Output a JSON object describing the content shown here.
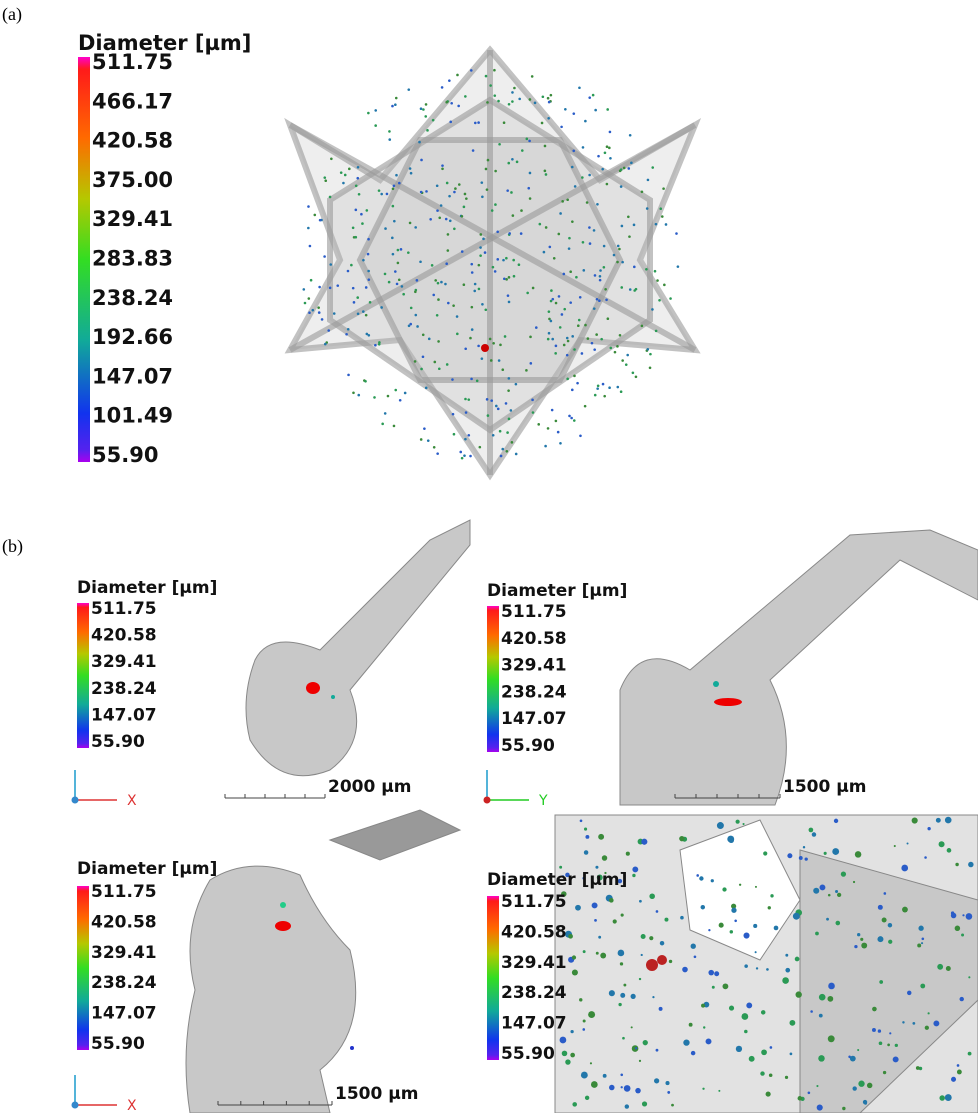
{
  "panel_a": {
    "label": "(a)",
    "colorbar": {
      "title": "Diameter [µm]",
      "ticks": [
        "511.75",
        "466.17",
        "420.58",
        "375.00",
        "329.41",
        "283.83",
        "238.24",
        "192.66",
        "147.07",
        "101.49",
        "55.90"
      ]
    }
  },
  "panel_b": {
    "label": "(b)",
    "views": [
      {
        "colorbar": {
          "title": "Diameter [µm]",
          "ticks": [
            "511.75",
            "420.58",
            "329.41",
            "238.24",
            "147.07",
            "55.90"
          ]
        },
        "scale_bar": "2000 µm",
        "axis_label": "X"
      },
      {
        "colorbar": {
          "title": "Diameter [µm]",
          "ticks": [
            "511.75",
            "420.58",
            "329.41",
            "238.24",
            "147.07",
            "55.90"
          ]
        },
        "scale_bar": "1500 µm",
        "axis_label": "Y"
      },
      {
        "colorbar": {
          "title": "Diameter [µm]",
          "ticks": [
            "511.75",
            "420.58",
            "329.41",
            "238.24",
            "147.07",
            "55.90"
          ]
        },
        "scale_bar": "1500 µm",
        "axis_label": "X"
      },
      {
        "colorbar": {
          "title": "Diameter [µm]",
          "ticks": [
            "511.75",
            "420.58",
            "329.41",
            "238.24",
            "147.07",
            "55.90"
          ]
        }
      }
    ]
  }
}
